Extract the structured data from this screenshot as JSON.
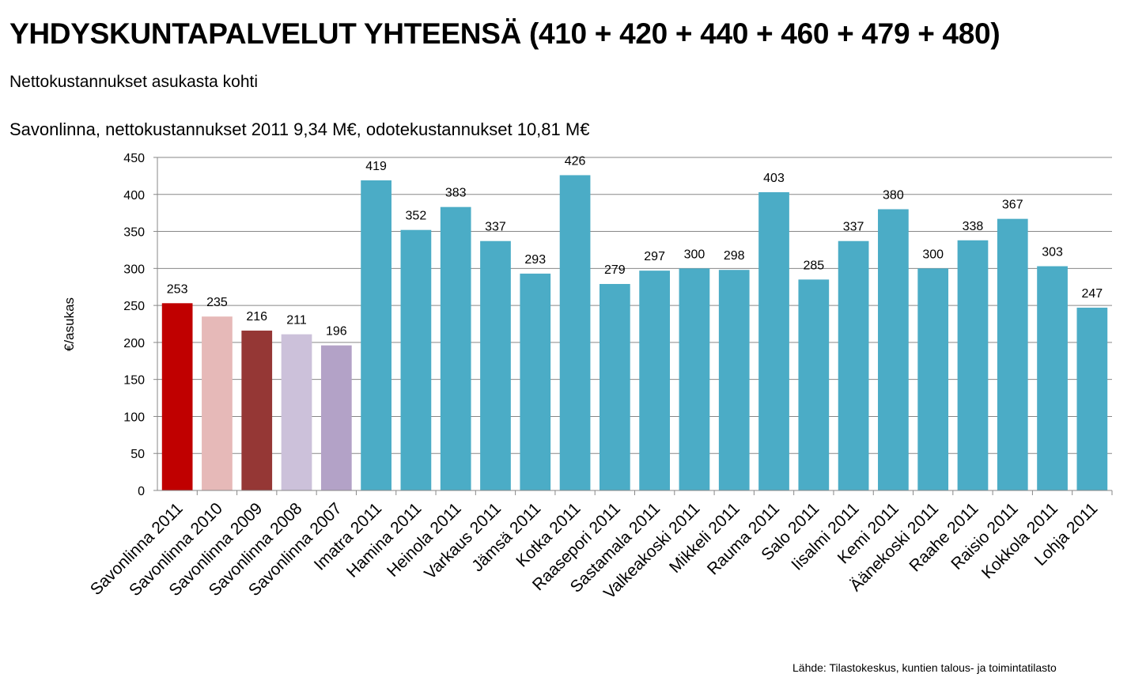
{
  "header": {
    "title": "YHDYSKUNTAPALVELUT YHTEENSÄ (410 + 420 + 440 + 460 + 479 + 480)",
    "subtitle": "Nettokustannukset asukasta kohti",
    "subtitle2": "Savonlinna, nettokustannukset 2011 9,34 M€, odotekustannukset 10,81 M€"
  },
  "footer": {
    "source": "Lähde: Tilastokeskus,  kuntien talous- ja toimintatilasto"
  },
  "chart_data": {
    "type": "bar",
    "title": "",
    "xlabel": "",
    "ylabel": "€/asukas",
    "ylim": [
      0,
      450
    ],
    "yticks": [
      0,
      50,
      100,
      150,
      200,
      250,
      300,
      350,
      400,
      450
    ],
    "grid": true,
    "legend": "none",
    "categories": [
      "Savonlinna 2011",
      "Savonlinna 2010",
      "Savonlinna 2009",
      "Savonlinna 2008",
      "Savonlinna 2007",
      "Imatra 2011",
      "Hamina 2011",
      "Heinola 2011",
      "Varkaus 2011",
      "Jämsä 2011",
      "Kotka 2011",
      "Raasepori 2011",
      "Sastamala 2011",
      "Valkeakoski 2011",
      "Mikkeli 2011",
      "Rauma 2011",
      "Salo 2011",
      "Iisalmi 2011",
      "Kemi 2011",
      "Äänekoski 2011",
      "Raahe 2011",
      "Raisio 2011",
      "Kokkola 2011",
      "Lohja 2011"
    ],
    "values": [
      253,
      235,
      216,
      211,
      196,
      419,
      352,
      383,
      337,
      293,
      426,
      279,
      297,
      300,
      298,
      403,
      285,
      337,
      380,
      300,
      338,
      367,
      303,
      247
    ],
    "colors": [
      "#C00000",
      "#E6B9B8",
      "#953735",
      "#CCC1DA",
      "#B3A2C7",
      "#4BACC6",
      "#4BACC6",
      "#4BACC6",
      "#4BACC6",
      "#4BACC6",
      "#4BACC6",
      "#4BACC6",
      "#4BACC6",
      "#4BACC6",
      "#4BACC6",
      "#4BACC6",
      "#4BACC6",
      "#4BACC6",
      "#4BACC6",
      "#4BACC6",
      "#4BACC6",
      "#4BACC6",
      "#4BACC6",
      "#4BACC6"
    ]
  }
}
